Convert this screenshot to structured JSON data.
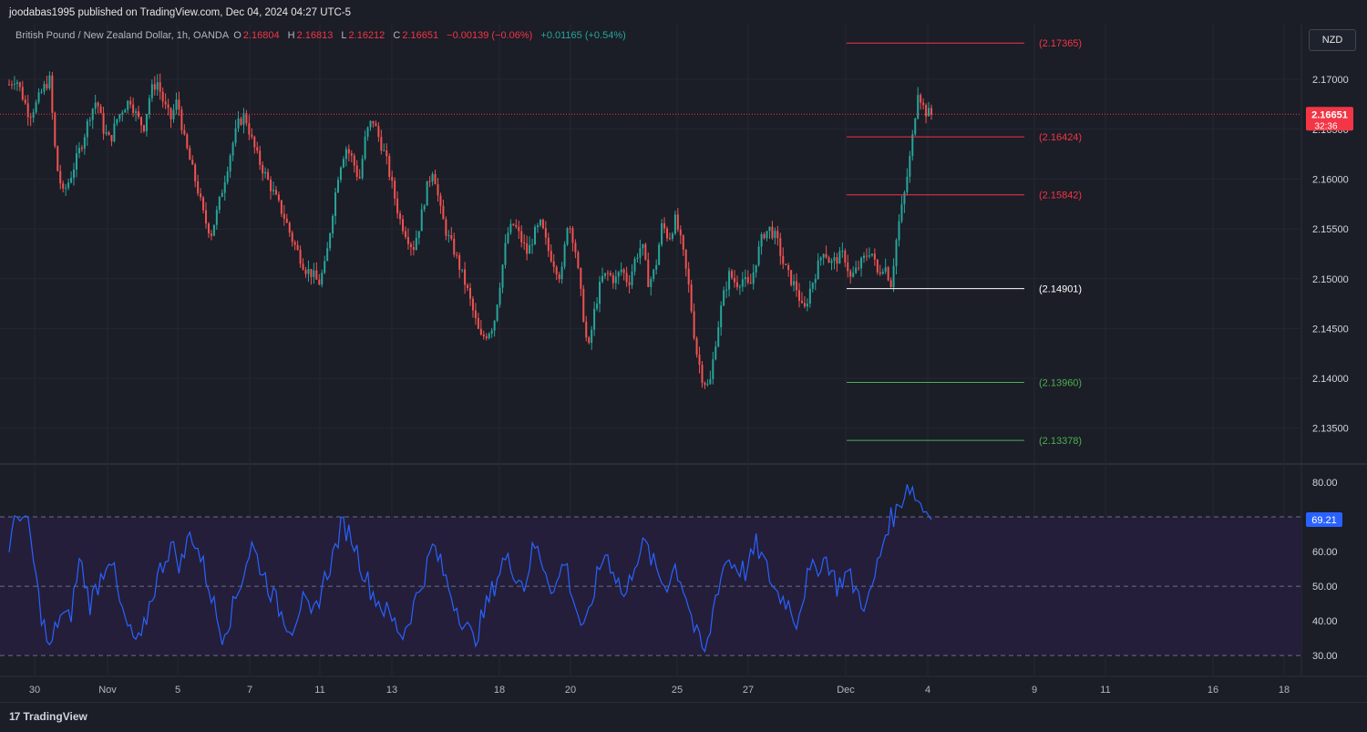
{
  "header": {
    "published": "joodabas1995 published on TradingView.com, Dec 04, 2024 04:27 UTC-5"
  },
  "legend": {
    "symbol": "British Pound / New Zealand Dollar, 1h, OANDA",
    "o_label": "O",
    "o": "2.16804",
    "h_label": "H",
    "h": "2.16813",
    "l_label": "L",
    "l": "2.16212",
    "c_label": "C",
    "c": "2.16651",
    "change": "−0.00139 (−0.06%)",
    "volchange": "+0.01165 (+0.54%)"
  },
  "currency_button": "NZD",
  "price_tag": {
    "price": "2.16651",
    "countdown": "32:36"
  },
  "rsi_tag": "69.21",
  "footer": {
    "brand": "TradingView"
  },
  "colors": {
    "up": "#26a69a",
    "down": "#ef5350",
    "rsi": "#2962ff",
    "white": "#ffffff",
    "bg": "#1b1d27"
  },
  "chart_data": {
    "type": "candlestick",
    "instrument": "GBP/NZD",
    "price_axis": {
      "ticks": [
        "2.17000",
        "2.16500",
        "2.16000",
        "2.15500",
        "2.15000",
        "2.14500",
        "2.14000",
        "2.13500"
      ],
      "range": [
        2.1315,
        2.1755
      ]
    },
    "x_ticks": [
      "30",
      "Nov",
      "5",
      "7",
      "11",
      "13",
      "18",
      "20",
      "25",
      "27",
      "Dec",
      "4",
      "9",
      "11",
      "16",
      "18"
    ],
    "close_path": [
      [
        0,
        2.1695
      ],
      [
        2,
        2.1702
      ],
      [
        4,
        2.1683
      ],
      [
        6,
        2.1664
      ],
      [
        8,
        2.1675
      ],
      [
        10,
        2.169
      ],
      [
        12,
        2.17
      ],
      [
        14,
        2.1615
      ],
      [
        16,
        2.1585
      ],
      [
        18,
        2.16
      ],
      [
        20,
        2.162
      ],
      [
        22,
        2.164
      ],
      [
        24,
        2.1665
      ],
      [
        26,
        2.168
      ],
      [
        28,
        2.165
      ],
      [
        30,
        2.1638
      ],
      [
        32,
        2.166
      ],
      [
        34,
        2.1672
      ],
      [
        36,
        2.168
      ],
      [
        38,
        2.1662
      ],
      [
        40,
        2.1652
      ],
      [
        42,
        2.1688
      ],
      [
        44,
        2.1698
      ],
      [
        46,
        2.1675
      ],
      [
        48,
        2.166
      ],
      [
        50,
        2.168
      ],
      [
        52,
        2.164
      ],
      [
        54,
        2.1615
      ],
      [
        56,
        2.159
      ],
      [
        58,
        2.156
      ],
      [
        60,
        2.1545
      ],
      [
        62,
        2.157
      ],
      [
        64,
        2.16
      ],
      [
        66,
        2.163
      ],
      [
        68,
        2.1655
      ],
      [
        70,
        2.1665
      ],
      [
        72,
        2.164
      ],
      [
        74,
        2.162
      ],
      [
        76,
        2.1605
      ],
      [
        78,
        2.159
      ],
      [
        80,
        2.1575
      ],
      [
        82,
        2.156
      ],
      [
        84,
        2.154
      ],
      [
        86,
        2.1525
      ],
      [
        88,
        2.151
      ],
      [
        90,
        2.1505
      ],
      [
        92,
        2.1495
      ],
      [
        94,
        2.1515
      ],
      [
        96,
        2.1565
      ],
      [
        98,
        2.161
      ],
      [
        100,
        2.1632
      ],
      [
        102,
        2.162
      ],
      [
        104,
        2.1598
      ],
      [
        106,
        2.1645
      ],
      [
        108,
        2.166
      ],
      [
        110,
        2.164
      ],
      [
        112,
        2.162
      ],
      [
        114,
        2.159
      ],
      [
        116,
        2.156
      ],
      [
        118,
        2.1545
      ],
      [
        120,
        2.153
      ],
      [
        122,
        2.1555
      ],
      [
        124,
        2.159
      ],
      [
        126,
        2.1612
      ],
      [
        128,
        2.157
      ],
      [
        130,
        2.1545
      ],
      [
        132,
        2.153
      ],
      [
        134,
        2.151
      ],
      [
        136,
        2.149
      ],
      [
        138,
        2.1465
      ],
      [
        140,
        2.144
      ],
      [
        142,
        2.1445
      ],
      [
        144,
        2.1455
      ],
      [
        146,
        2.15
      ],
      [
        148,
        2.1545
      ],
      [
        150,
        2.1555
      ],
      [
        152,
        2.154
      ],
      [
        154,
        2.1525
      ],
      [
        156,
        2.1545
      ],
      [
        158,
        2.1555
      ],
      [
        160,
        2.153
      ],
      [
        162,
        2.1515
      ],
      [
        164,
        2.15
      ],
      [
        166,
        2.156
      ],
      [
        168,
        2.1535
      ],
      [
        170,
        2.148
      ],
      [
        172,
        2.1425
      ],
      [
        174,
        2.147
      ],
      [
        176,
        2.15
      ],
      [
        178,
        2.1505
      ],
      [
        180,
        2.1498
      ],
      [
        182,
        2.151
      ],
      [
        184,
        2.1495
      ],
      [
        186,
        2.152
      ],
      [
        188,
        2.1535
      ],
      [
        190,
        2.1495
      ],
      [
        192,
        2.151
      ],
      [
        194,
        2.1555
      ],
      [
        196,
        2.154
      ],
      [
        198,
        2.156
      ],
      [
        200,
        2.153
      ],
      [
        202,
        2.149
      ],
      [
        204,
        2.143
      ],
      [
        206,
        2.14
      ],
      [
        208,
        2.139
      ],
      [
        210,
        2.144
      ],
      [
        212,
        2.148
      ],
      [
        214,
        2.1505
      ],
      [
        216,
        2.1495
      ],
      [
        218,
        2.15
      ],
      [
        220,
        2.149
      ],
      [
        222,
        2.152
      ],
      [
        224,
        2.1545
      ],
      [
        226,
        2.155
      ],
      [
        228,
        2.154
      ],
      [
        230,
        2.1515
      ],
      [
        232,
        2.15
      ],
      [
        234,
        2.149
      ],
      [
        236,
        2.1465
      ],
      [
        238,
        2.149
      ],
      [
        240,
        2.151
      ],
      [
        242,
        2.153
      ],
      [
        244,
        2.1515
      ],
      [
        246,
        2.152
      ],
      [
        248,
        2.1525
      ],
      [
        250,
        2.15
      ],
      [
        252,
        2.151
      ],
      [
        254,
        2.152
      ],
      [
        256,
        2.153
      ],
      [
        258,
        2.1505
      ],
      [
        260,
        2.1515
      ],
      [
        262,
        2.1495
      ],
      [
        264,
        2.155
      ],
      [
        266,
        2.1585
      ],
      [
        268,
        2.163
      ],
      [
        270,
        2.169
      ],
      [
        272,
        2.1668
      ],
      [
        274,
        2.1665
      ]
    ],
    "levels": [
      {
        "price": 2.17365,
        "label": "(2.17365)",
        "color": "#f23645"
      },
      {
        "price": 2.16424,
        "label": "(2.16424)",
        "color": "#f23645"
      },
      {
        "price": 2.15842,
        "label": "(2.15842)",
        "color": "#f23645"
      },
      {
        "price": 2.14901,
        "label": "(2.14901)",
        "color": "#ffffff"
      },
      {
        "price": 2.1396,
        "label": "(2.13960)",
        "color": "#4caf50"
      },
      {
        "price": 2.13378,
        "label": "(2.13378)",
        "color": "#4caf50"
      }
    ],
    "current_price": 2.16651,
    "rsi": {
      "ticks": [
        "80.00",
        "60.00",
        "50.00",
        "40.00",
        "30.00"
      ],
      "range": [
        24,
        85
      ],
      "bands": [
        30,
        50,
        70
      ],
      "last": 69.21,
      "path": [
        [
          0,
          62
        ],
        [
          3,
          72
        ],
        [
          6,
          66
        ],
        [
          9,
          45
        ],
        [
          12,
          31
        ],
        [
          15,
          42
        ],
        [
          18,
          40
        ],
        [
          21,
          58
        ],
        [
          24,
          45
        ],
        [
          27,
          52
        ],
        [
          30,
          60
        ],
        [
          33,
          44
        ],
        [
          36,
          36
        ],
        [
          39,
          33
        ],
        [
          42,
          46
        ],
        [
          45,
          55
        ],
        [
          48,
          62
        ],
        [
          51,
          56
        ],
        [
          54,
          66
        ],
        [
          57,
          58
        ],
        [
          60,
          48
        ],
        [
          63,
          36
        ],
        [
          66,
          42
        ],
        [
          69,
          52
        ],
        [
          72,
          62
        ],
        [
          75,
          55
        ],
        [
          78,
          48
        ],
        [
          81,
          42
        ],
        [
          84,
          38
        ],
        [
          87,
          46
        ],
        [
          90,
          40
        ],
        [
          93,
          50
        ],
        [
          96,
          58
        ],
        [
          99,
          68
        ],
        [
          102,
          64
        ],
        [
          105,
          55
        ],
        [
          108,
          48
        ],
        [
          111,
          44
        ],
        [
          114,
          40
        ],
        [
          117,
          36
        ],
        [
          120,
          44
        ],
        [
          123,
          52
        ],
        [
          126,
          62
        ],
        [
          129,
          54
        ],
        [
          132,
          46
        ],
        [
          135,
          40
        ],
        [
          138,
          34
        ],
        [
          141,
          42
        ],
        [
          144,
          50
        ],
        [
          147,
          58
        ],
        [
          150,
          55
        ],
        [
          153,
          50
        ],
        [
          156,
          62
        ],
        [
          159,
          56
        ],
        [
          162,
          48
        ],
        [
          165,
          58
        ],
        [
          168,
          45
        ],
        [
          171,
          36
        ],
        [
          174,
          50
        ],
        [
          177,
          60
        ],
        [
          180,
          54
        ],
        [
          183,
          46
        ],
        [
          186,
          58
        ],
        [
          189,
          62
        ],
        [
          192,
          55
        ],
        [
          195,
          50
        ],
        [
          198,
          56
        ],
        [
          201,
          48
        ],
        [
          204,
          36
        ],
        [
          207,
          30
        ],
        [
          210,
          48
        ],
        [
          213,
          58
        ],
        [
          216,
          56
        ],
        [
          219,
          54
        ],
        [
          222,
          62
        ],
        [
          225,
          55
        ],
        [
          228,
          48
        ],
        [
          231,
          46
        ],
        [
          234,
          40
        ],
        [
          237,
          52
        ],
        [
          240,
          56
        ],
        [
          243,
          58
        ],
        [
          246,
          50
        ],
        [
          249,
          54
        ],
        [
          252,
          48
        ],
        [
          255,
          44
        ],
        [
          258,
          56
        ],
        [
          261,
          68
        ],
        [
          264,
          72
        ],
        [
          267,
          80
        ],
        [
          270,
          75
        ],
        [
          274,
          69.21
        ]
      ]
    }
  }
}
